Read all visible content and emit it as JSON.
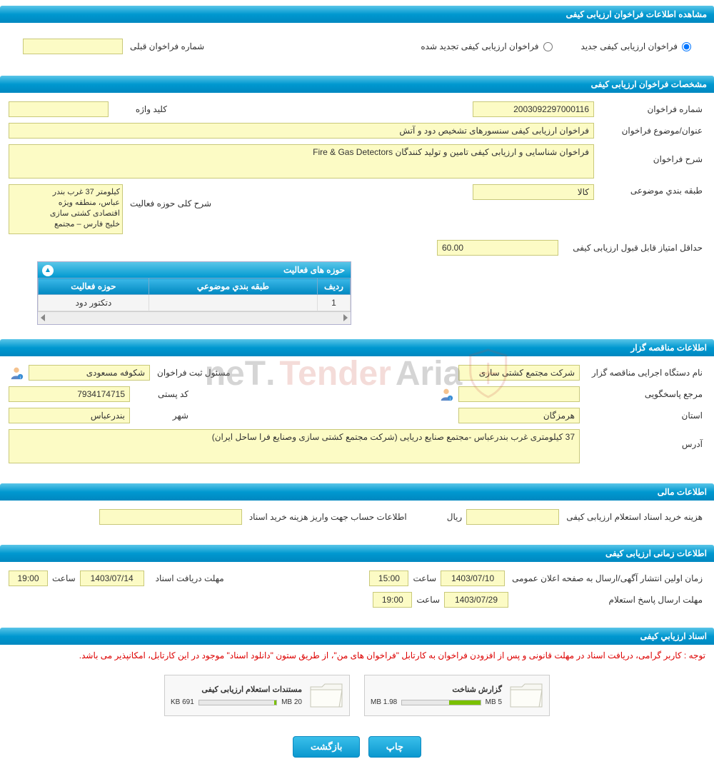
{
  "header1": "مشاهده اطلاعات فراخوان ارزیابی کیفی",
  "radio": {
    "new": "فراخوان ارزیابی کیفی جدید",
    "renewed": "فراخوان ارزیابی کیفی تجدید شده",
    "prev_label": "شماره فراخوان قبلی"
  },
  "header2": "مشخصات فراخوان ارزیابی کیفی",
  "spec": {
    "number_label": "شماره فراخوان",
    "number_value": "2003092297000116",
    "keyword_label": "کلید واژه",
    "keyword_value": "",
    "subject_label": "عنوان/موضوع فراخوان",
    "subject_value": "فراخوان ارزیابی کیفی  سنسورهای تشخیص دود و آتش",
    "desc_label": "شرح فراخوان",
    "desc_value": "فراخوان شناسایی و ارزیابی کیفی تامین و تولید کنندگان Fire & Gas Detectors",
    "category_label": "طبقه بندي موضوعی",
    "category_value": "کالا",
    "scope_label": "شرح کلی حوزه فعالیت",
    "scope_lines": [
      "کیلومتر 37 غرب بندر",
      "عباس، منطقه ویژه",
      "اقتصادی کشتی سازی",
      "خلیج فارس – مجتمع"
    ],
    "minscore_label": "حداقل امتیاز قابل قبول ارزیابی کیفی",
    "minscore_value": "60.00",
    "table_title": "حوزه های فعالیت",
    "th_row": "ردیف",
    "th_cat": "طبقه بندي موضوعي",
    "th_scope": "حوزه فعالیت",
    "td_row": "1",
    "td_cat": "",
    "td_scope": "دتکتور دود"
  },
  "header3": "اطلاعات مناقصه گزار",
  "org": {
    "exec_label": "نام دستگاه اجرایی مناقصه گزار",
    "exec_value": "شرکت مجتمع کشتی سازی",
    "resp_label": "مسئول ثبت فراخوان",
    "resp_value": "شکوفه مسعودی",
    "ref_label": "مرجع پاسخگویی",
    "ref_value": "",
    "post_label": "کد پستی",
    "post_value": "7934174715",
    "prov_label": "استان",
    "prov_value": "هرمزگان",
    "city_label": "شهر",
    "city_value": "بندرعباس",
    "addr_label": "آدرس",
    "addr_value": "37 کیلومتری غرب بندرعباس -مجتمع صنایع دریایی (شرکت مجتمع کشتی سازی وصنایع فرا ساحل ایران)"
  },
  "header4": "اطلاعات مالی",
  "fin": {
    "cost_label": "هزینه خرید اسناد استعلام ارزیابی کیفی",
    "cost_value": "",
    "rial": "ریال",
    "acct_label": "اطلاعات حساب جهت واریز هزینه خرید اسناد",
    "acct_value": ""
  },
  "header5": "اطلاعات زمانی ارزیابی کیفی",
  "time": {
    "pub_label": "زمان اولین انتشار آگهی/ارسال به صفحه اعلان عمومی",
    "pub_date": "1403/07/10",
    "pub_time": "15:00",
    "saat": "ساعت",
    "recv_label": "مهلت دریافت اسناد",
    "recv_date": "1403/07/14",
    "recv_time": "19:00",
    "reply_label": "مهلت ارسال پاسخ استعلام",
    "reply_date": "1403/07/29",
    "reply_time": "19:00"
  },
  "header6": "اسناد ارزیابي کیفی",
  "docs": {
    "notice": "توجه : کاربر گرامی، دریافت اسناد در مهلت قانونی و پس از افزودن فراخوان به کارتابل \"فراخوان های من\"، از طریق ستون \"دانلود اسناد\" موجود در این کارتابل، امکانپذیر می باشد.",
    "file1_title": "گزارش شناخت",
    "file1_used": "1.98 MB",
    "file1_total": "5 MB",
    "file1_pct": 40,
    "file2_title": "مستندات استعلام ارزیابی کیفی",
    "file2_used": "691 KB",
    "file2_total": "20 MB",
    "file2_pct": 3
  },
  "btn_print": "چاپ",
  "btn_back": "بازگشت",
  "colors": {
    "header_bg_top": "#5bc6e8",
    "header_bg_bottom": "#0098d0",
    "field_bg": "#fcfbc5",
    "field_border": "#c9c97a",
    "notice_color": "#d00",
    "bar_fill": "#7ac000"
  }
}
